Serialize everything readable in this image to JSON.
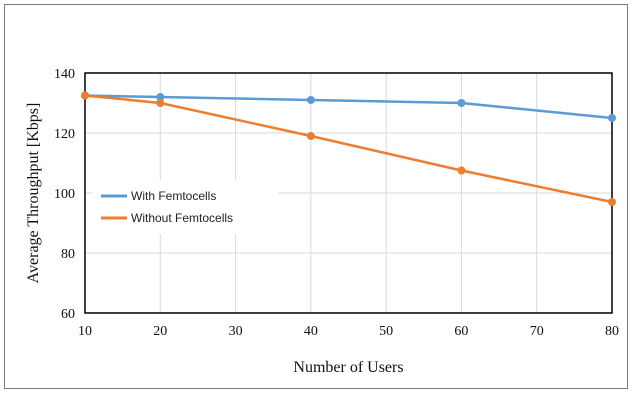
{
  "chart_data": {
    "type": "line",
    "xlabel": "Number of Users",
    "ylabel": "Average Throughput [Kbps]",
    "xlim": [
      10,
      80
    ],
    "ylim": [
      60,
      140
    ],
    "xticks": [
      10,
      20,
      30,
      40,
      50,
      60,
      70,
      80
    ],
    "yticks": [
      60,
      80,
      100,
      120,
      140
    ],
    "grid": true,
    "legend_position": "middle-left",
    "series": [
      {
        "name": "With Femtocells",
        "color": "#5b9bd5",
        "x": [
          10,
          20,
          40,
          60,
          80
        ],
        "y": [
          132.5,
          132,
          131,
          130,
          125
        ]
      },
      {
        "name": "Without Femtocells",
        "color": "#ed7d31",
        "x": [
          10,
          20,
          40,
          60,
          80
        ],
        "y": [
          132.5,
          130,
          119,
          107.5,
          97
        ]
      }
    ]
  }
}
